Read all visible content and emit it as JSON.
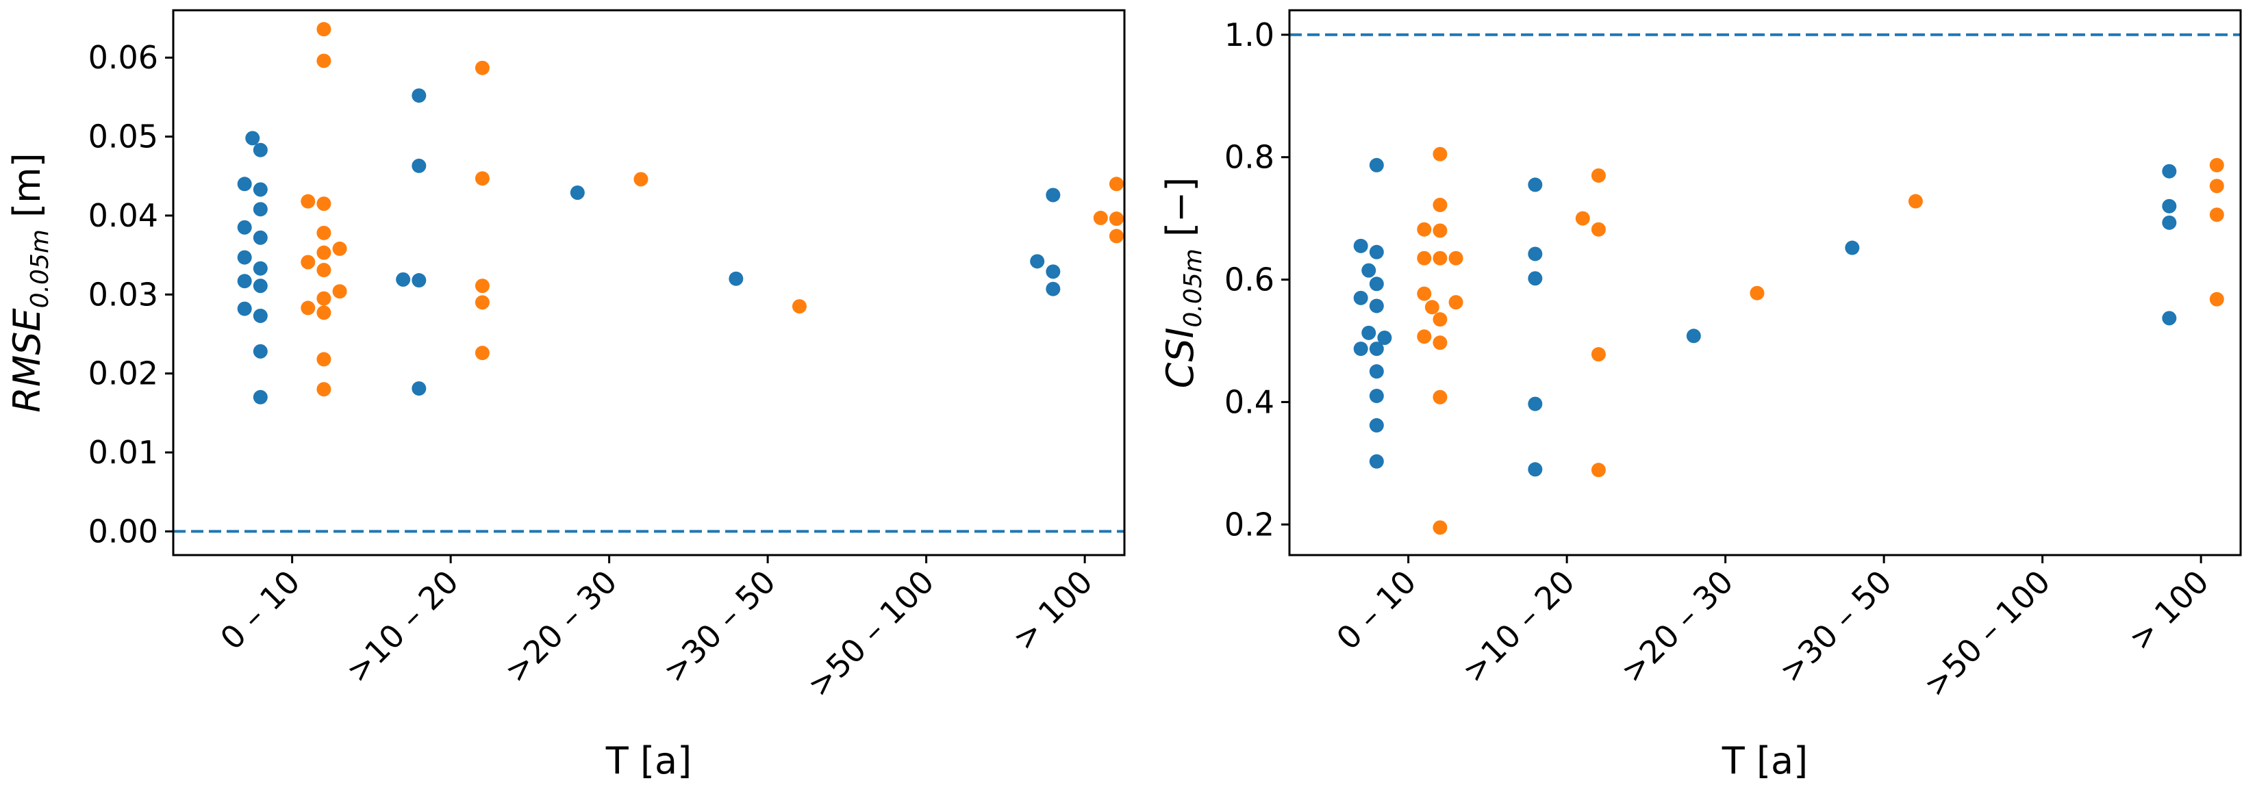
{
  "colors": {
    "series_a": "#1f77b4",
    "series_b": "#ff7f0e",
    "reference_line": "#1f77b4"
  },
  "chart_data": [
    {
      "type": "scatter",
      "categories": [
        "0 – 10",
        ">10 – 20",
        ">20 – 30",
        ">30 – 50",
        ">50 – 100",
        "> 100"
      ],
      "xlabel": "T [a]",
      "ylabel": {
        "main": "RMSE",
        "sub": "0.05m",
        "unit": " [m]"
      },
      "ylim": [
        -0.003,
        0.066
      ],
      "yticks": [
        0.0,
        0.01,
        0.02,
        0.03,
        0.04,
        0.05,
        0.06
      ],
      "ytick_labels": [
        "0.00",
        "0.01",
        "0.02",
        "0.03",
        "0.04",
        "0.05",
        "0.06"
      ],
      "reference_line": 0.0,
      "grid": false,
      "series": [
        {
          "color": "#1f77b4",
          "points": [
            [
              -0.3,
              0.044
            ],
            [
              -0.3,
              0.0385
            ],
            [
              -0.3,
              0.0347
            ],
            [
              -0.3,
              0.0317
            ],
            [
              -0.3,
              0.0282
            ],
            [
              -0.25,
              0.0498
            ],
            [
              -0.2,
              0.0483
            ],
            [
              -0.2,
              0.0433
            ],
            [
              -0.2,
              0.0408
            ],
            [
              -0.2,
              0.0372
            ],
            [
              -0.2,
              0.0333
            ],
            [
              -0.2,
              0.0311
            ],
            [
              -0.2,
              0.0273
            ],
            [
              -0.2,
              0.0228
            ],
            [
              -0.2,
              0.017
            ],
            [
              0.7,
              0.0319
            ],
            [
              0.8,
              0.0552
            ],
            [
              0.8,
              0.0463
            ],
            [
              0.8,
              0.0318
            ],
            [
              0.8,
              0.0181
            ],
            [
              1.8,
              0.0429
            ],
            [
              2.8,
              0.032
            ],
            [
              4.7,
              0.0342
            ],
            [
              4.8,
              0.0426
            ],
            [
              4.8,
              0.0329
            ],
            [
              4.8,
              0.0307
            ]
          ]
        },
        {
          "color": "#ff7f0e",
          "points": [
            [
              0.2,
              0.0636
            ],
            [
              0.2,
              0.0596
            ],
            [
              0.1,
              0.0418
            ],
            [
              0.2,
              0.0415
            ],
            [
              0.2,
              0.0378
            ],
            [
              0.2,
              0.0353
            ],
            [
              0.3,
              0.0358
            ],
            [
              0.1,
              0.0341
            ],
            [
              0.2,
              0.0331
            ],
            [
              0.3,
              0.0304
            ],
            [
              0.2,
              0.0295
            ],
            [
              0.1,
              0.0283
            ],
            [
              0.2,
              0.0277
            ],
            [
              0.2,
              0.0218
            ],
            [
              0.2,
              0.018
            ],
            [
              1.2,
              0.0587
            ],
            [
              1.2,
              0.0447
            ],
            [
              1.2,
              0.0311
            ],
            [
              1.2,
              0.029
            ],
            [
              1.2,
              0.0226
            ],
            [
              2.2,
              0.0446
            ],
            [
              3.2,
              0.0285
            ],
            [
              5.1,
              0.0397
            ],
            [
              5.2,
              0.044
            ],
            [
              5.2,
              0.0396
            ],
            [
              5.2,
              0.0374
            ]
          ]
        }
      ]
    },
    {
      "type": "scatter",
      "categories": [
        "0 – 10",
        ">10 – 20",
        ">20 – 30",
        ">30 – 50",
        ">50 – 100",
        "> 100"
      ],
      "xlabel": "T [a]",
      "ylabel": {
        "main": "CSI",
        "sub": "0.05m",
        "unit": " [−]"
      },
      "ylim": [
        0.15,
        1.04
      ],
      "yticks": [
        0.2,
        0.4,
        0.6,
        0.8,
        1.0
      ],
      "ytick_labels": [
        "0.2",
        "0.4",
        "0.6",
        "0.8",
        "1.0"
      ],
      "reference_line": 1.0,
      "grid": false,
      "series": [
        {
          "color": "#1f77b4",
          "points": [
            [
              -0.3,
              0.655
            ],
            [
              -0.25,
              0.615
            ],
            [
              -0.3,
              0.57
            ],
            [
              -0.3,
              0.487
            ],
            [
              -0.25,
              0.513
            ],
            [
              -0.2,
              0.787
            ],
            [
              -0.2,
              0.645
            ],
            [
              -0.2,
              0.593
            ],
            [
              -0.2,
              0.557
            ],
            [
              -0.15,
              0.505
            ],
            [
              -0.2,
              0.487
            ],
            [
              -0.2,
              0.45
            ],
            [
              -0.2,
              0.41
            ],
            [
              -0.2,
              0.362
            ],
            [
              -0.2,
              0.303
            ],
            [
              0.8,
              0.755
            ],
            [
              0.8,
              0.642
            ],
            [
              0.8,
              0.602
            ],
            [
              0.8,
              0.397
            ],
            [
              0.8,
              0.29
            ],
            [
              1.8,
              0.508
            ],
            [
              2.8,
              0.652
            ],
            [
              4.8,
              0.777
            ],
            [
              4.8,
              0.72
            ],
            [
              4.8,
              0.693
            ],
            [
              4.8,
              0.537
            ]
          ]
        },
        {
          "color": "#ff7f0e",
          "points": [
            [
              0.1,
              0.682
            ],
            [
              0.2,
              0.805
            ],
            [
              0.2,
              0.722
            ],
            [
              0.2,
              0.68
            ],
            [
              0.1,
              0.635
            ],
            [
              0.2,
              0.635
            ],
            [
              0.3,
              0.635
            ],
            [
              0.1,
              0.577
            ],
            [
              0.3,
              0.563
            ],
            [
              0.15,
              0.555
            ],
            [
              0.2,
              0.535
            ],
            [
              0.1,
              0.507
            ],
            [
              0.2,
              0.497
            ],
            [
              0.2,
              0.408
            ],
            [
              0.2,
              0.195
            ],
            [
              1.1,
              0.7
            ],
            [
              1.2,
              0.77
            ],
            [
              1.2,
              0.682
            ],
            [
              1.2,
              0.478
            ],
            [
              1.2,
              0.289
            ],
            [
              2.2,
              0.578
            ],
            [
              3.2,
              0.728
            ],
            [
              5.1,
              0.787
            ],
            [
              5.1,
              0.753
            ],
            [
              5.1,
              0.706
            ],
            [
              5.1,
              0.568
            ]
          ]
        }
      ]
    }
  ]
}
